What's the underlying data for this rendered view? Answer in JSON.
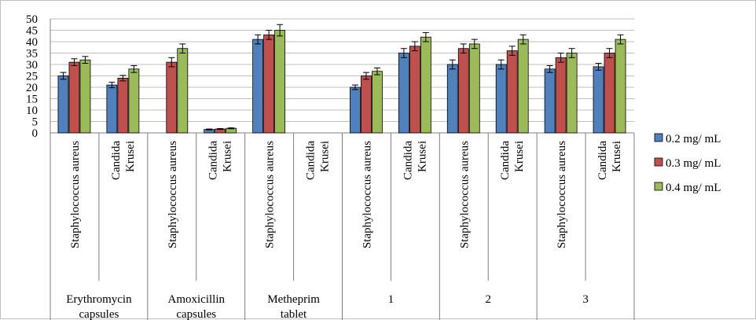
{
  "chart_data": {
    "type": "bar",
    "ylim": [
      0,
      50
    ],
    "yticks": [
      0,
      5,
      10,
      15,
      20,
      25,
      30,
      35,
      40,
      45,
      50
    ],
    "grid": true,
    "legend_position": "right",
    "groups": [
      {
        "name": "Erythromycin capsules",
        "categories": [
          "Staphylococcus aureus",
          "Candida Krusei"
        ]
      },
      {
        "name": "Amoxicillin capsules",
        "categories": [
          "Staphylococcus aureus",
          "Candida Krusei"
        ]
      },
      {
        "name": "Metheprim tablet",
        "categories": [
          "Staphylococcus aureus",
          "Candida Krusei"
        ]
      },
      {
        "name": "1",
        "categories": [
          "Staphylococcus aureus",
          "Candida Krusei"
        ]
      },
      {
        "name": "2",
        "categories": [
          "Staphylococcus aureus",
          "Candida Krusei"
        ]
      },
      {
        "name": "3",
        "categories": [
          "Staphylococcus aureus",
          "Candida Krusei"
        ]
      }
    ],
    "series": [
      {
        "name": "0.2 mg/ mL",
        "color": "#4f81bd",
        "values": [
          25,
          21,
          0,
          1.5,
          41,
          0,
          20,
          35,
          30,
          30,
          28,
          29
        ],
        "errors": [
          1.5,
          1.2,
          0,
          0.2,
          2,
          0,
          1,
          2,
          2,
          2,
          1.5,
          1.5
        ]
      },
      {
        "name": "0.3 mg/ mL",
        "color": "#c0504d",
        "values": [
          31,
          24,
          31,
          1.7,
          43,
          0,
          25,
          38,
          37,
          36,
          33,
          35
        ],
        "errors": [
          1.5,
          1.2,
          2,
          0.2,
          2,
          0,
          1.5,
          2,
          2,
          2,
          2,
          2
        ]
      },
      {
        "name": "0.4 mg/ mL",
        "color": "#9bbb59",
        "values": [
          32,
          28,
          37,
          2,
          45,
          0,
          27,
          42,
          39,
          41,
          35,
          41
        ],
        "errors": [
          1.5,
          1.5,
          2,
          0.2,
          2.5,
          0,
          1.5,
          2,
          2,
          2,
          2,
          2
        ]
      }
    ]
  }
}
